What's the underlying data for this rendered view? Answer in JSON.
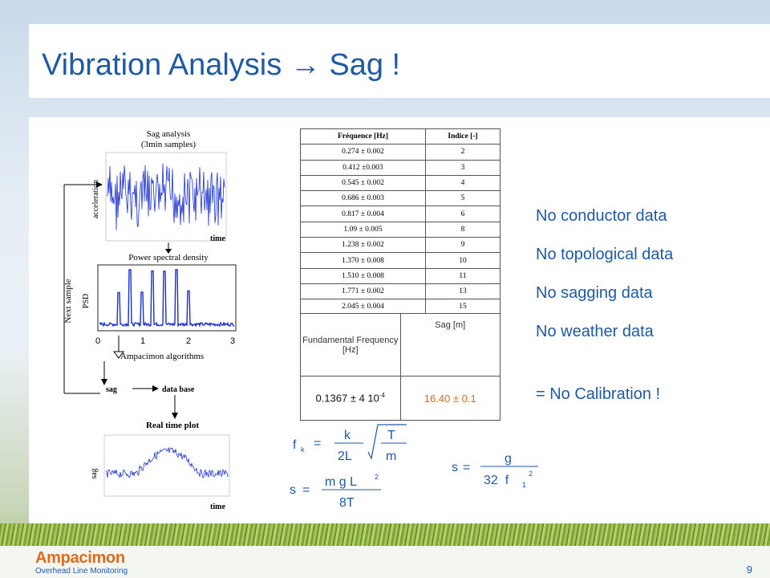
{
  "slide": {
    "title": "Vibration Analysis → Sag !",
    "page_number": "9",
    "logo": {
      "name": "Ampacimon",
      "tagline": "Overhead Line Monitoring"
    }
  },
  "diagram": {
    "sag_analysis_title": "Sag analysis",
    "sag_analysis_subtitle": "(3min samples)",
    "acceleration_label": "acceleration",
    "time_label_1": "time",
    "psd_title": "Power spectral density",
    "psd_label": "PSD",
    "axis_ticks": [
      "0",
      "1",
      "2",
      "3"
    ],
    "algorithms_label": "Ampacimon algorithms",
    "next_sample_label": "Next sample",
    "sag_label": "sag",
    "database_label": "data base",
    "realtime_title": "Real time plot",
    "sag_axis_label": "sag",
    "time_label_2": "time"
  },
  "frequency_table": {
    "headers": [
      "Fréquence [Hz]",
      "Indice [-]"
    ],
    "rows": [
      [
        "0.274 ± 0.002",
        "2"
      ],
      [
        "0.412 ±0.003",
        "3"
      ],
      [
        "0.545 ± 0.002",
        "4"
      ],
      [
        "0.686 ± 0.003",
        "5"
      ],
      [
        "0.817 ± 0.004",
        "6"
      ],
      [
        "1.09 ± 0.005",
        "8"
      ],
      [
        "1.238 ± 0.002",
        "9"
      ],
      [
        "1.370 ± 0.008",
        "10"
      ],
      [
        "1.510 ± 0.008",
        "11"
      ],
      [
        "1.771 ± 0.002",
        "13"
      ],
      [
        "2.045 ± 0.004",
        "15"
      ]
    ]
  },
  "result_table": {
    "header_fundamental": "Fundamental Frequency [Hz]",
    "header_sag": "Sag [m]",
    "value_fundamental": "0.1367 ± 4 10",
    "value_fundamental_exp": "-4",
    "value_sag": "16.40 ± 0.1"
  },
  "notes": [
    "No conductor data",
    "No topological data",
    "No sagging data",
    "No weather data"
  ],
  "conclusion": "= No Calibration !",
  "formulas": {
    "f1_lhs": "f",
    "f1_sub": "k",
    "f1_eq": "=",
    "f1_num": "k",
    "f1_den": "2L",
    "f1_sqrt_num": "T",
    "f1_sqrt_den": "m",
    "f2_lhs": "s",
    "f2_eq": "=",
    "f2_num": "m g L",
    "f2_sup": "2",
    "f2_den": "8T",
    "f3_lhs": "s",
    "f3_eq": "=",
    "f3_num": "g",
    "f3_den": "32  f",
    "f3_sub": "1",
    "f3_sup": "2"
  }
}
